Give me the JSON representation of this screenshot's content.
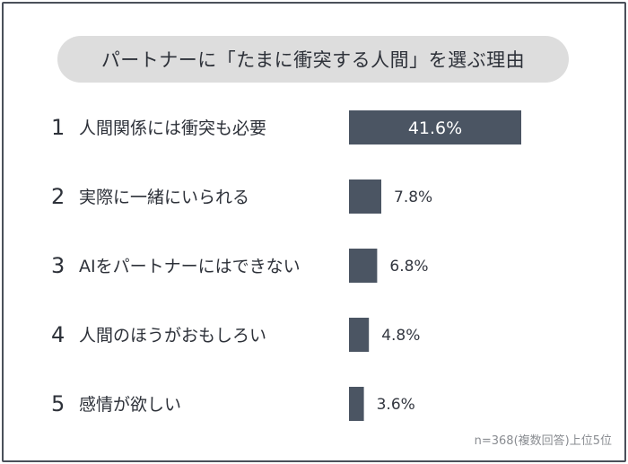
{
  "chart_data": {
    "type": "bar",
    "orientation": "horizontal",
    "title": "パートナーに「たまに衝突する人間」を選ぶ理由",
    "categories": [
      "人間関係には衝突も必要",
      "実際に一緒にいられる",
      "AIをパートナーにはできない",
      "人間のほうがおもしろい",
      "感情が欲しい"
    ],
    "ranks": [
      "1",
      "2",
      "3",
      "4",
      "5"
    ],
    "values": [
      41.6,
      7.8,
      6.8,
      4.8,
      3.6
    ],
    "value_labels": [
      "41.6%",
      "7.8%",
      "6.8%",
      "4.8%",
      "3.6%"
    ],
    "unit": "%",
    "note": "n=368(複数回答)上位5位",
    "bar_color": "#4b5563",
    "label_inside_color": "#ffffff",
    "label_outside_color": "#333740"
  }
}
